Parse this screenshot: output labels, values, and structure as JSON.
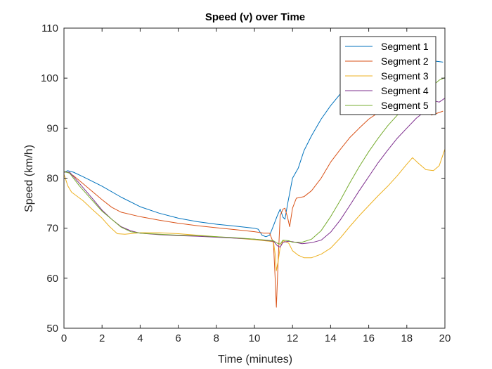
{
  "chart_data": {
    "type": "line",
    "title": "Speed (v) over Time",
    "xlabel": "Time (minutes)",
    "ylabel": "Speed (km/h)",
    "xlim": [
      0,
      20
    ],
    "ylim": [
      50,
      110
    ],
    "xticks": [
      0,
      2,
      4,
      6,
      8,
      10,
      12,
      14,
      16,
      18,
      20
    ],
    "yticks": [
      50,
      60,
      70,
      80,
      90,
      100,
      110
    ],
    "grid": false,
    "legend_position": "top-right",
    "series": [
      {
        "name": "Segment 1",
        "color": "#0072BD",
        "points": [
          [
            0,
            81.2
          ],
          [
            0.2,
            81.5
          ],
          [
            0.5,
            81.2
          ],
          [
            1,
            80.3
          ],
          [
            2,
            78.4
          ],
          [
            3,
            76.2
          ],
          [
            4,
            74.3
          ],
          [
            5,
            73
          ],
          [
            6,
            72
          ],
          [
            7,
            71.3
          ],
          [
            8,
            70.8
          ],
          [
            9,
            70.4
          ],
          [
            10,
            70
          ],
          [
            10.2,
            69.8
          ],
          [
            10.4,
            68.6
          ],
          [
            10.6,
            68.3
          ],
          [
            10.8,
            68.6
          ],
          [
            11,
            70.5
          ],
          [
            11.2,
            72.5
          ],
          [
            11.35,
            73.8
          ],
          [
            11.5,
            72.2
          ],
          [
            11.6,
            71.8
          ],
          [
            11.75,
            75
          ],
          [
            12,
            80
          ],
          [
            12.3,
            82
          ],
          [
            12.6,
            85.5
          ],
          [
            13,
            88.5
          ],
          [
            13.5,
            91.8
          ],
          [
            14,
            94.5
          ],
          [
            14.5,
            96.8
          ],
          [
            15,
            98.5
          ],
          [
            15.5,
            99.8
          ],
          [
            16,
            100.5
          ],
          [
            16.5,
            101.2
          ],
          [
            17,
            101.7
          ],
          [
            17.5,
            102.1
          ],
          [
            18,
            102.5
          ],
          [
            18.5,
            102.8
          ],
          [
            19,
            103.1
          ],
          [
            19.5,
            103.4
          ],
          [
            19.9,
            103.2
          ]
        ]
      },
      {
        "name": "Segment 2",
        "color": "#D95319",
        "points": [
          [
            0,
            81.3
          ],
          [
            0.2,
            81.2
          ],
          [
            0.5,
            80.5
          ],
          [
            1,
            78.9
          ],
          [
            1.5,
            77.3
          ],
          [
            2,
            75.7
          ],
          [
            2.5,
            74.2
          ],
          [
            3,
            73.2
          ],
          [
            4,
            72.3
          ],
          [
            5,
            71.6
          ],
          [
            6,
            71
          ],
          [
            7,
            70.5
          ],
          [
            8,
            70.1
          ],
          [
            9,
            69.7
          ],
          [
            10,
            69.3
          ],
          [
            10.5,
            69
          ],
          [
            10.8,
            69
          ],
          [
            11,
            67
          ],
          [
            11.1,
            59
          ],
          [
            11.15,
            54.2
          ],
          [
            11.25,
            64
          ],
          [
            11.35,
            72.5
          ],
          [
            11.5,
            73.8
          ],
          [
            11.6,
            74
          ],
          [
            11.75,
            72
          ],
          [
            11.85,
            70.3
          ],
          [
            12,
            74
          ],
          [
            12.2,
            76
          ],
          [
            12.6,
            76.3
          ],
          [
            13,
            77.5
          ],
          [
            13.5,
            80
          ],
          [
            14,
            83.2
          ],
          [
            14.5,
            85.7
          ],
          [
            15,
            88.1
          ],
          [
            15.5,
            90
          ],
          [
            16,
            91.8
          ],
          [
            16.5,
            93.1
          ],
          [
            17,
            94.5
          ],
          [
            17.5,
            95.5
          ],
          [
            18,
            96
          ],
          [
            18.5,
            95.2
          ],
          [
            19,
            93.6
          ],
          [
            19.3,
            92.6
          ],
          [
            19.6,
            93
          ],
          [
            19.9,
            93.4
          ]
        ]
      },
      {
        "name": "Segment 3",
        "color": "#EDB120",
        "points": [
          [
            0,
            80.8
          ],
          [
            0.2,
            78.5
          ],
          [
            0.4,
            77.2
          ],
          [
            1,
            75.5
          ],
          [
            1.5,
            73.7
          ],
          [
            2,
            72
          ],
          [
            2.4,
            70.3
          ],
          [
            2.8,
            68.9
          ],
          [
            3.2,
            68.8
          ],
          [
            4,
            69.1
          ],
          [
            5,
            69.1
          ],
          [
            6,
            68.9
          ],
          [
            7,
            68.6
          ],
          [
            8,
            68.3
          ],
          [
            9,
            68
          ],
          [
            10,
            67.7
          ],
          [
            11,
            67.3
          ],
          [
            11.1,
            64.5
          ],
          [
            11.15,
            61.5
          ],
          [
            11.25,
            63.5
          ],
          [
            11.35,
            66.2
          ],
          [
            11.5,
            67.5
          ],
          [
            11.8,
            67
          ],
          [
            12,
            65.5
          ],
          [
            12.3,
            64.6
          ],
          [
            12.6,
            64.1
          ],
          [
            13,
            64.1
          ],
          [
            13.5,
            64.8
          ],
          [
            14,
            66
          ],
          [
            14.5,
            68
          ],
          [
            15,
            70.3
          ],
          [
            15.5,
            72.5
          ],
          [
            16,
            74.5
          ],
          [
            16.5,
            76.5
          ],
          [
            17,
            78.4
          ],
          [
            17.5,
            80.5
          ],
          [
            18,
            82.8
          ],
          [
            18.3,
            84.1
          ],
          [
            18.6,
            83
          ],
          [
            19,
            81.7
          ],
          [
            19.4,
            81.5
          ],
          [
            19.7,
            82.5
          ],
          [
            20,
            85.8
          ]
        ]
      },
      {
        "name": "Segment 4",
        "color": "#7E2F8E",
        "points": [
          [
            0,
            81.2
          ],
          [
            0.3,
            81.2
          ],
          [
            0.8,
            79
          ],
          [
            1.5,
            75.9
          ],
          [
            2,
            73.6
          ],
          [
            2.5,
            71.8
          ],
          [
            3,
            70.3
          ],
          [
            3.5,
            69.5
          ],
          [
            4,
            69
          ],
          [
            5,
            68.7
          ],
          [
            6,
            68.5
          ],
          [
            7,
            68.4
          ],
          [
            8,
            68.2
          ],
          [
            9,
            68
          ],
          [
            10,
            67.8
          ],
          [
            11,
            67.4
          ],
          [
            11.2,
            66.5
          ],
          [
            11.35,
            66.2
          ],
          [
            11.5,
            67.2
          ],
          [
            11.8,
            67.4
          ],
          [
            12,
            67.3
          ],
          [
            12.5,
            66.9
          ],
          [
            13,
            67.1
          ],
          [
            13.5,
            67.6
          ],
          [
            14,
            69.2
          ],
          [
            14.5,
            71.6
          ],
          [
            15,
            74.5
          ],
          [
            15.5,
            77.5
          ],
          [
            16,
            80.3
          ],
          [
            16.5,
            83.1
          ],
          [
            17,
            85.6
          ],
          [
            17.5,
            88
          ],
          [
            18,
            90
          ],
          [
            18.5,
            92
          ],
          [
            19,
            93.5
          ],
          [
            19.4,
            95.5
          ],
          [
            19.7,
            95.2
          ],
          [
            20,
            96
          ]
        ]
      },
      {
        "name": "Segment 5",
        "color": "#77AC30",
        "points": [
          [
            0,
            81.3
          ],
          [
            0.3,
            81
          ],
          [
            0.8,
            78.5
          ],
          [
            1.5,
            75.5
          ],
          [
            2,
            73.4
          ],
          [
            2.5,
            71.8
          ],
          [
            3,
            70.2
          ],
          [
            3.5,
            69.3
          ],
          [
            4,
            69
          ],
          [
            5,
            68.8
          ],
          [
            6,
            68.6
          ],
          [
            7,
            68.5
          ],
          [
            8,
            68.3
          ],
          [
            9,
            68.1
          ],
          [
            10,
            67.8
          ],
          [
            11,
            67.5
          ],
          [
            11.2,
            67
          ],
          [
            11.35,
            66.8
          ],
          [
            11.5,
            67.6
          ],
          [
            11.8,
            67.5
          ],
          [
            12,
            67.2
          ],
          [
            12.5,
            67.2
          ],
          [
            13,
            67.8
          ],
          [
            13.5,
            69.5
          ],
          [
            14,
            72.3
          ],
          [
            14.5,
            75.5
          ],
          [
            15,
            79
          ],
          [
            15.5,
            82.3
          ],
          [
            16,
            85.3
          ],
          [
            16.5,
            88
          ],
          [
            17,
            90.5
          ],
          [
            17.5,
            92.6
          ],
          [
            18,
            94.4
          ],
          [
            18.5,
            95.8
          ],
          [
            19,
            97.2
          ],
          [
            19.4,
            98.6
          ],
          [
            19.7,
            99.6
          ],
          [
            20,
            100.1
          ]
        ]
      }
    ]
  }
}
